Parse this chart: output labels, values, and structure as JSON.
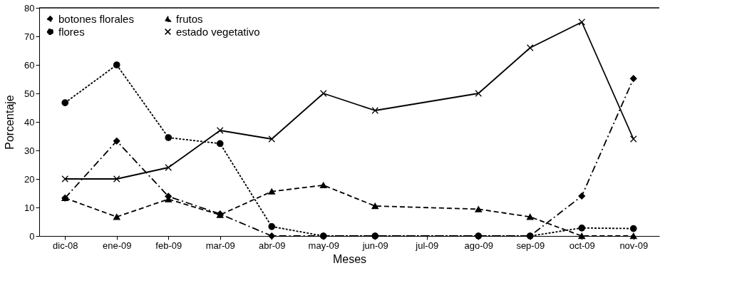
{
  "chart_data": {
    "type": "line",
    "xlabel": "Meses",
    "ylabel": "Porcentaje",
    "categories": [
      "dic-08",
      "ene-09",
      "feb-09",
      "mar-09",
      "abr-09",
      "may-09",
      "jun-09",
      "jul-09",
      "ago-09",
      "sep-09",
      "oct-09",
      "nov-09"
    ],
    "series": [
      {
        "name": "botones florales",
        "color": "#000000",
        "marker": "diamond",
        "line_style": "dashdot",
        "values": [
          13.3,
          33.3,
          13.9,
          7.7,
          0,
          0,
          0,
          null,
          0,
          0,
          14,
          55.2
        ]
      },
      {
        "name": "flores",
        "color": "#000000",
        "marker": "circle",
        "line_style": "dotted",
        "values": [
          46.7,
          60,
          34.5,
          32.4,
          3.3,
          0,
          0,
          null,
          0,
          0,
          2.8,
          2.6
        ]
      },
      {
        "name": "frutos",
        "color": "#000000",
        "marker": "triangle",
        "line_style": "dashed",
        "values": [
          13.3,
          6.7,
          12.9,
          7.4,
          15.6,
          17.8,
          10.5,
          null,
          9.4,
          6.7,
          0,
          0
        ]
      },
      {
        "name": "estado vegetativo",
        "color": "#000000",
        "marker": "cross",
        "line_style": "solid",
        "values": [
          20,
          20,
          24,
          37,
          34,
          50,
          44,
          null,
          50,
          66,
          75,
          34
        ]
      }
    ],
    "ylim": [
      0,
      80
    ],
    "yticks": [
      0,
      10,
      20,
      30,
      40,
      50,
      60,
      70,
      80
    ],
    "grid": false,
    "legend": "top left"
  }
}
